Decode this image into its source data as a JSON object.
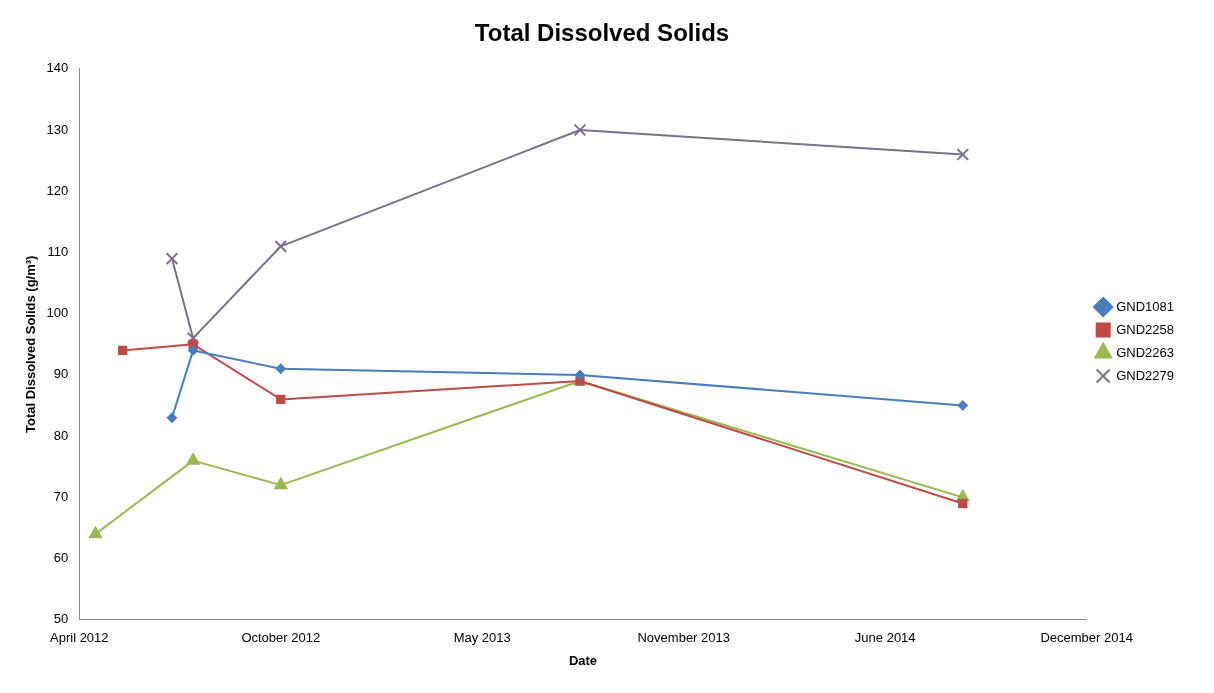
{
  "chart_data": {
    "type": "line",
    "title": "Total Dissolved Solids",
    "xlabel": "Date",
    "ylabel": "Total Dissolved Solids (g/m³)",
    "xlim": [
      "2012-04-01",
      "2014-12-27"
    ],
    "xticks": [
      {
        "value": "2012-04-01",
        "label": "April 2012"
      },
      {
        "value": "2012-10-18",
        "label": "October 2012"
      },
      {
        "value": "2013-05-06",
        "label": "May 2013"
      },
      {
        "value": "2013-11-22",
        "label": "November 2013"
      },
      {
        "value": "2014-06-10",
        "label": "June 2014"
      },
      {
        "value": "2014-12-27",
        "label": "December 2014"
      }
    ],
    "ylim": [
      50,
      140
    ],
    "yticks": [
      50,
      60,
      70,
      80,
      90,
      100,
      110,
      120,
      130,
      140
    ],
    "grid": false,
    "legend": "right",
    "line_style": "solid",
    "series": [
      {
        "name": "GND1081",
        "color": "#4a7ebb",
        "marker": "diamond",
        "x": [
          "2012-07-02",
          "2012-07-23",
          "2012-10-18",
          "2013-08-11",
          "2014-08-26"
        ],
        "values": [
          83,
          94,
          91,
          90,
          85
        ]
      },
      {
        "name": "GND2258",
        "color": "#be4b48",
        "marker": "square",
        "x": [
          "2012-05-14",
          "2012-07-23",
          "2012-10-18",
          "2013-08-11",
          "2014-08-26"
        ],
        "values": [
          94,
          95,
          86,
          89,
          69
        ]
      },
      {
        "name": "GND2263",
        "color": "#98b954",
        "marker": "triangle",
        "x": [
          "2012-04-17",
          "2012-07-23",
          "2012-10-18",
          "2013-08-11",
          "2014-08-26"
        ],
        "values": [
          64,
          76,
          72,
          89,
          70
        ]
      },
      {
        "name": "GND2279",
        "color": "#7d6f8c",
        "marker": "cross",
        "x": [
          "2012-07-02",
          "2012-07-23",
          "2012-10-18",
          "2013-08-11",
          "2014-08-26"
        ],
        "values": [
          109,
          96,
          111,
          130,
          126
        ]
      }
    ]
  }
}
